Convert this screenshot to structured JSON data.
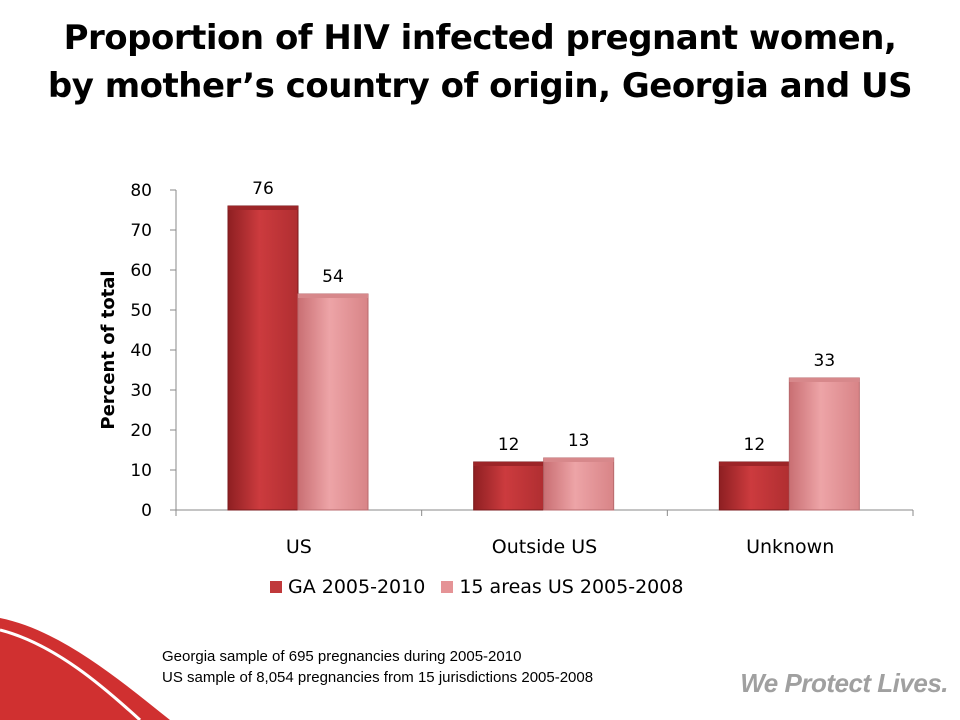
{
  "slide": {
    "title": "Proportion of HIV infected pregnant women, by mother’s country of origin, Georgia and US",
    "footnote_lines": [
      "Georgia sample of 695 pregnancies during 2005-2010",
      "US sample of 8,054 pregnancies from 15 jurisdictions 2005-2008"
    ],
    "tagline": "We Protect Lives.",
    "accent_color": "#d03030"
  },
  "chart_data": {
    "type": "bar",
    "title": "Proportion of HIV infected pregnant women, by mother’s country of origin, Georgia and US",
    "ylabel": "Percent of total",
    "xlabel": "",
    "categories": [
      "US",
      "Outside US",
      "Unknown"
    ],
    "ylim": [
      0,
      80
    ],
    "yticks": [
      0,
      10,
      20,
      30,
      40,
      50,
      60,
      70,
      80
    ],
    "grid": false,
    "legend_position": "bottom",
    "series": [
      {
        "name": "GA 2005-2010",
        "values": [
          76,
          12,
          12
        ],
        "color": "#c0393b"
      },
      {
        "name": "15 areas US 2005-2008",
        "values": [
          54,
          13,
          33
        ],
        "color": "#e59396"
      }
    ],
    "data_labels": true
  }
}
